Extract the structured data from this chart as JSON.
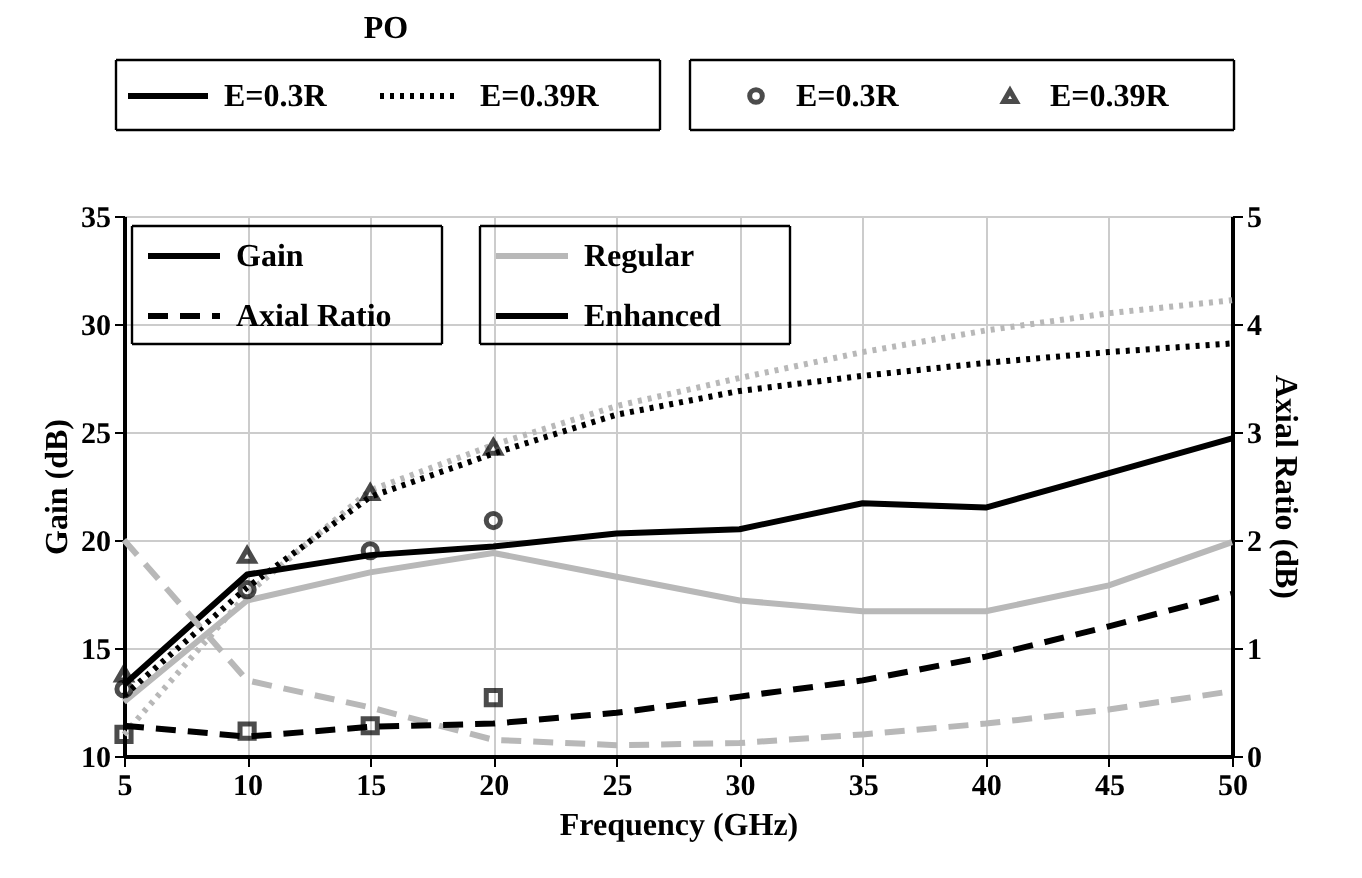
{
  "chart_data": {
    "type": "line",
    "xlabel": "Frequency (GHz)",
    "ylabel": "Gain (dB)",
    "y2label": "Axial Ratio (dB)",
    "x": [
      5,
      10,
      15,
      20,
      25,
      30,
      35,
      40,
      45,
      50
    ],
    "xlim": [
      5,
      50
    ],
    "xticks": [
      5,
      10,
      15,
      20,
      25,
      30,
      35,
      40,
      45,
      50
    ],
    "ylim": [
      10,
      35
    ],
    "yticks": [
      10,
      15,
      20,
      25,
      30,
      35
    ],
    "y2lim": [
      0,
      5
    ],
    "y2ticks": [
      0,
      1,
      2,
      3,
      4,
      5
    ],
    "grid": true,
    "annotations": [
      "PO",
      "E=0.3R",
      "E=0.39R",
      "E=0.3R",
      "E=0.39R",
      "Gain",
      "Axial Ratio",
      "Regular",
      "Enhanced"
    ],
    "series": [
      {
        "color": "#b8b8b8",
        "line_style": "solid",
        "values": [
          12.5,
          17.2,
          18.5,
          19.4,
          18.3,
          17.2,
          16.7,
          16.7,
          17.9,
          19.9
        ]
      },
      {
        "color": "#b8b8b8",
        "line_style": "dotted",
        "values": [
          11.0,
          17.5,
          22.3,
          24.4,
          26.2,
          27.5,
          28.7,
          29.7,
          30.5,
          31.1
        ]
      },
      {
        "color": "#b8b8b8",
        "line_style": "dashed",
        "axis": "y2",
        "values": [
          2.0,
          0.7,
          0.45,
          0.15,
          0.1,
          0.12,
          0.2,
          0.3,
          0.43,
          0.6
        ]
      },
      {
        "color": "#000000",
        "line_style": "solid",
        "values": [
          13.3,
          18.4,
          19.3,
          19.7,
          20.3,
          20.5,
          21.7,
          21.5,
          23.1,
          24.7
        ]
      },
      {
        "color": "#000000",
        "line_style": "dotted",
        "values": [
          12.8,
          17.8,
          22.0,
          24.0,
          25.8,
          26.9,
          27.6,
          28.2,
          28.7,
          29.1
        ]
      },
      {
        "color": "#000000",
        "line_style": "dashed",
        "axis": "y2",
        "values": [
          0.28,
          0.18,
          0.27,
          0.3,
          0.4,
          0.55,
          0.7,
          0.92,
          1.2,
          1.5
        ]
      },
      {
        "type": "scatter",
        "color": "#000000",
        "marker": "circle",
        "x": [
          5,
          10,
          15,
          20
        ],
        "values": [
          13.1,
          17.7,
          19.5,
          20.9
        ]
      },
      {
        "type": "scatter",
        "color": "#000000",
        "marker": "triangle",
        "x": [
          5,
          10,
          15,
          20
        ],
        "values": [
          13.8,
          19.3,
          22.2,
          24.3
        ]
      },
      {
        "type": "scatter",
        "color": "#000000",
        "marker": "square",
        "axis": "y2",
        "x": [
          5,
          10,
          15,
          20
        ],
        "values": [
          0.2,
          0.23,
          0.28,
          0.54
        ]
      }
    ]
  }
}
